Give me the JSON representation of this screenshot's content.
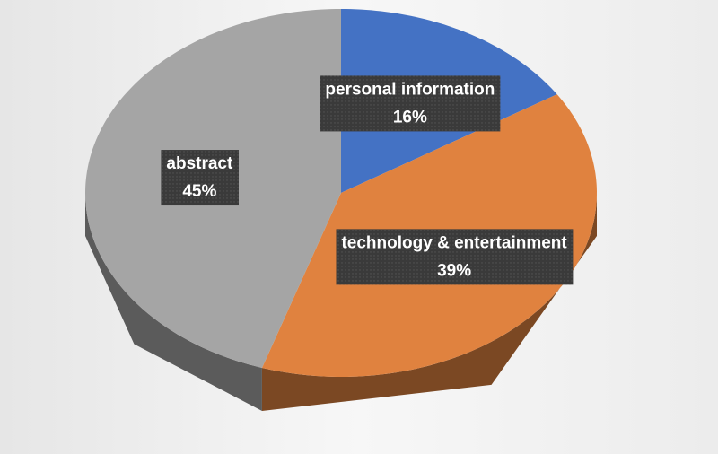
{
  "chart_data": {
    "type": "pie",
    "categories": [
      "personal information",
      "technology & entertainment",
      "abstract"
    ],
    "values": [
      16,
      39,
      45
    ],
    "value_labels": [
      "16%",
      "39%",
      "45%"
    ],
    "colors": [
      "#4472c4",
      "#e0823f",
      "#a5a5a5"
    ]
  }
}
